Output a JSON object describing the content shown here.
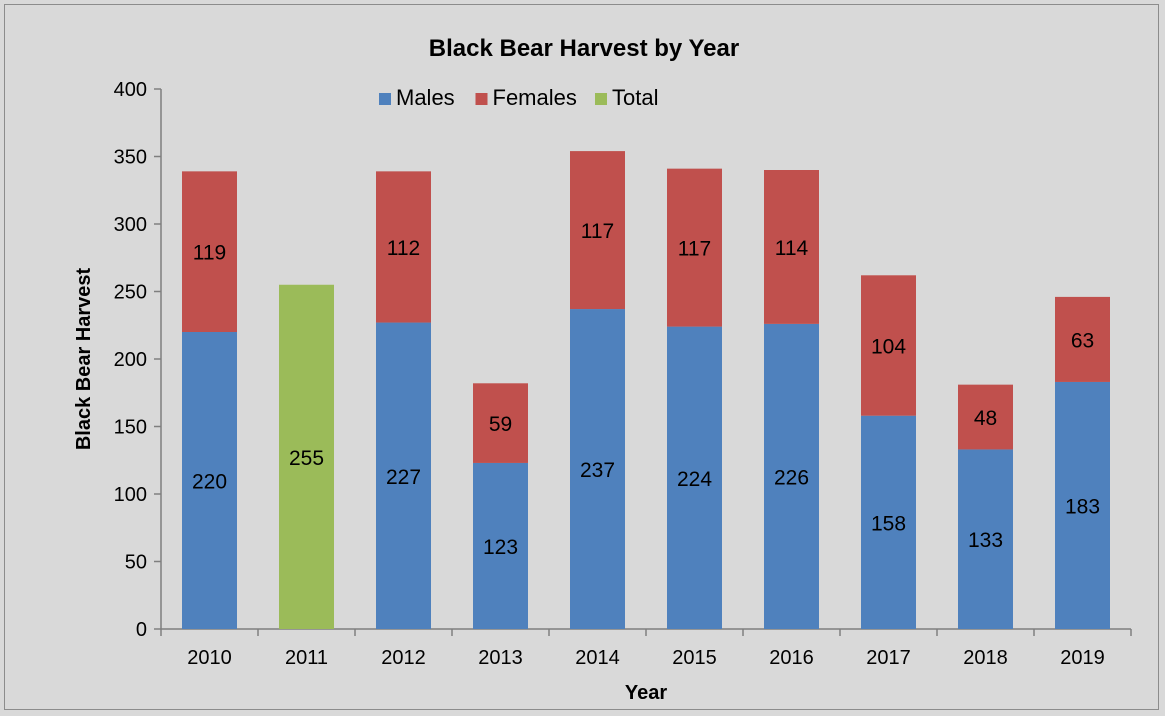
{
  "chart_data": {
    "type": "bar",
    "stacked": true,
    "title": "Black Bear Harvest by Year",
    "xlabel": "Year",
    "ylabel": "Black Bear Harvest",
    "ylim": [
      0,
      400
    ],
    "yticks": [
      0,
      50,
      100,
      150,
      200,
      250,
      300,
      350,
      400
    ],
    "categories": [
      "2010",
      "2011",
      "2012",
      "2013",
      "2014",
      "2015",
      "2016",
      "2017",
      "2018",
      "2019"
    ],
    "series": [
      {
        "name": "Males",
        "color": "#4f81bd",
        "values": [
          220,
          null,
          227,
          123,
          237,
          224,
          226,
          158,
          133,
          183
        ]
      },
      {
        "name": "Females",
        "color": "#c0504d",
        "values": [
          119,
          null,
          112,
          59,
          117,
          117,
          114,
          104,
          48,
          63
        ]
      },
      {
        "name": "Total",
        "color": "#9bbb59",
        "values": [
          null,
          255,
          null,
          null,
          null,
          null,
          null,
          null,
          null,
          null
        ]
      }
    ],
    "legend_position": "top-center",
    "grid": false,
    "data_labels": true
  }
}
